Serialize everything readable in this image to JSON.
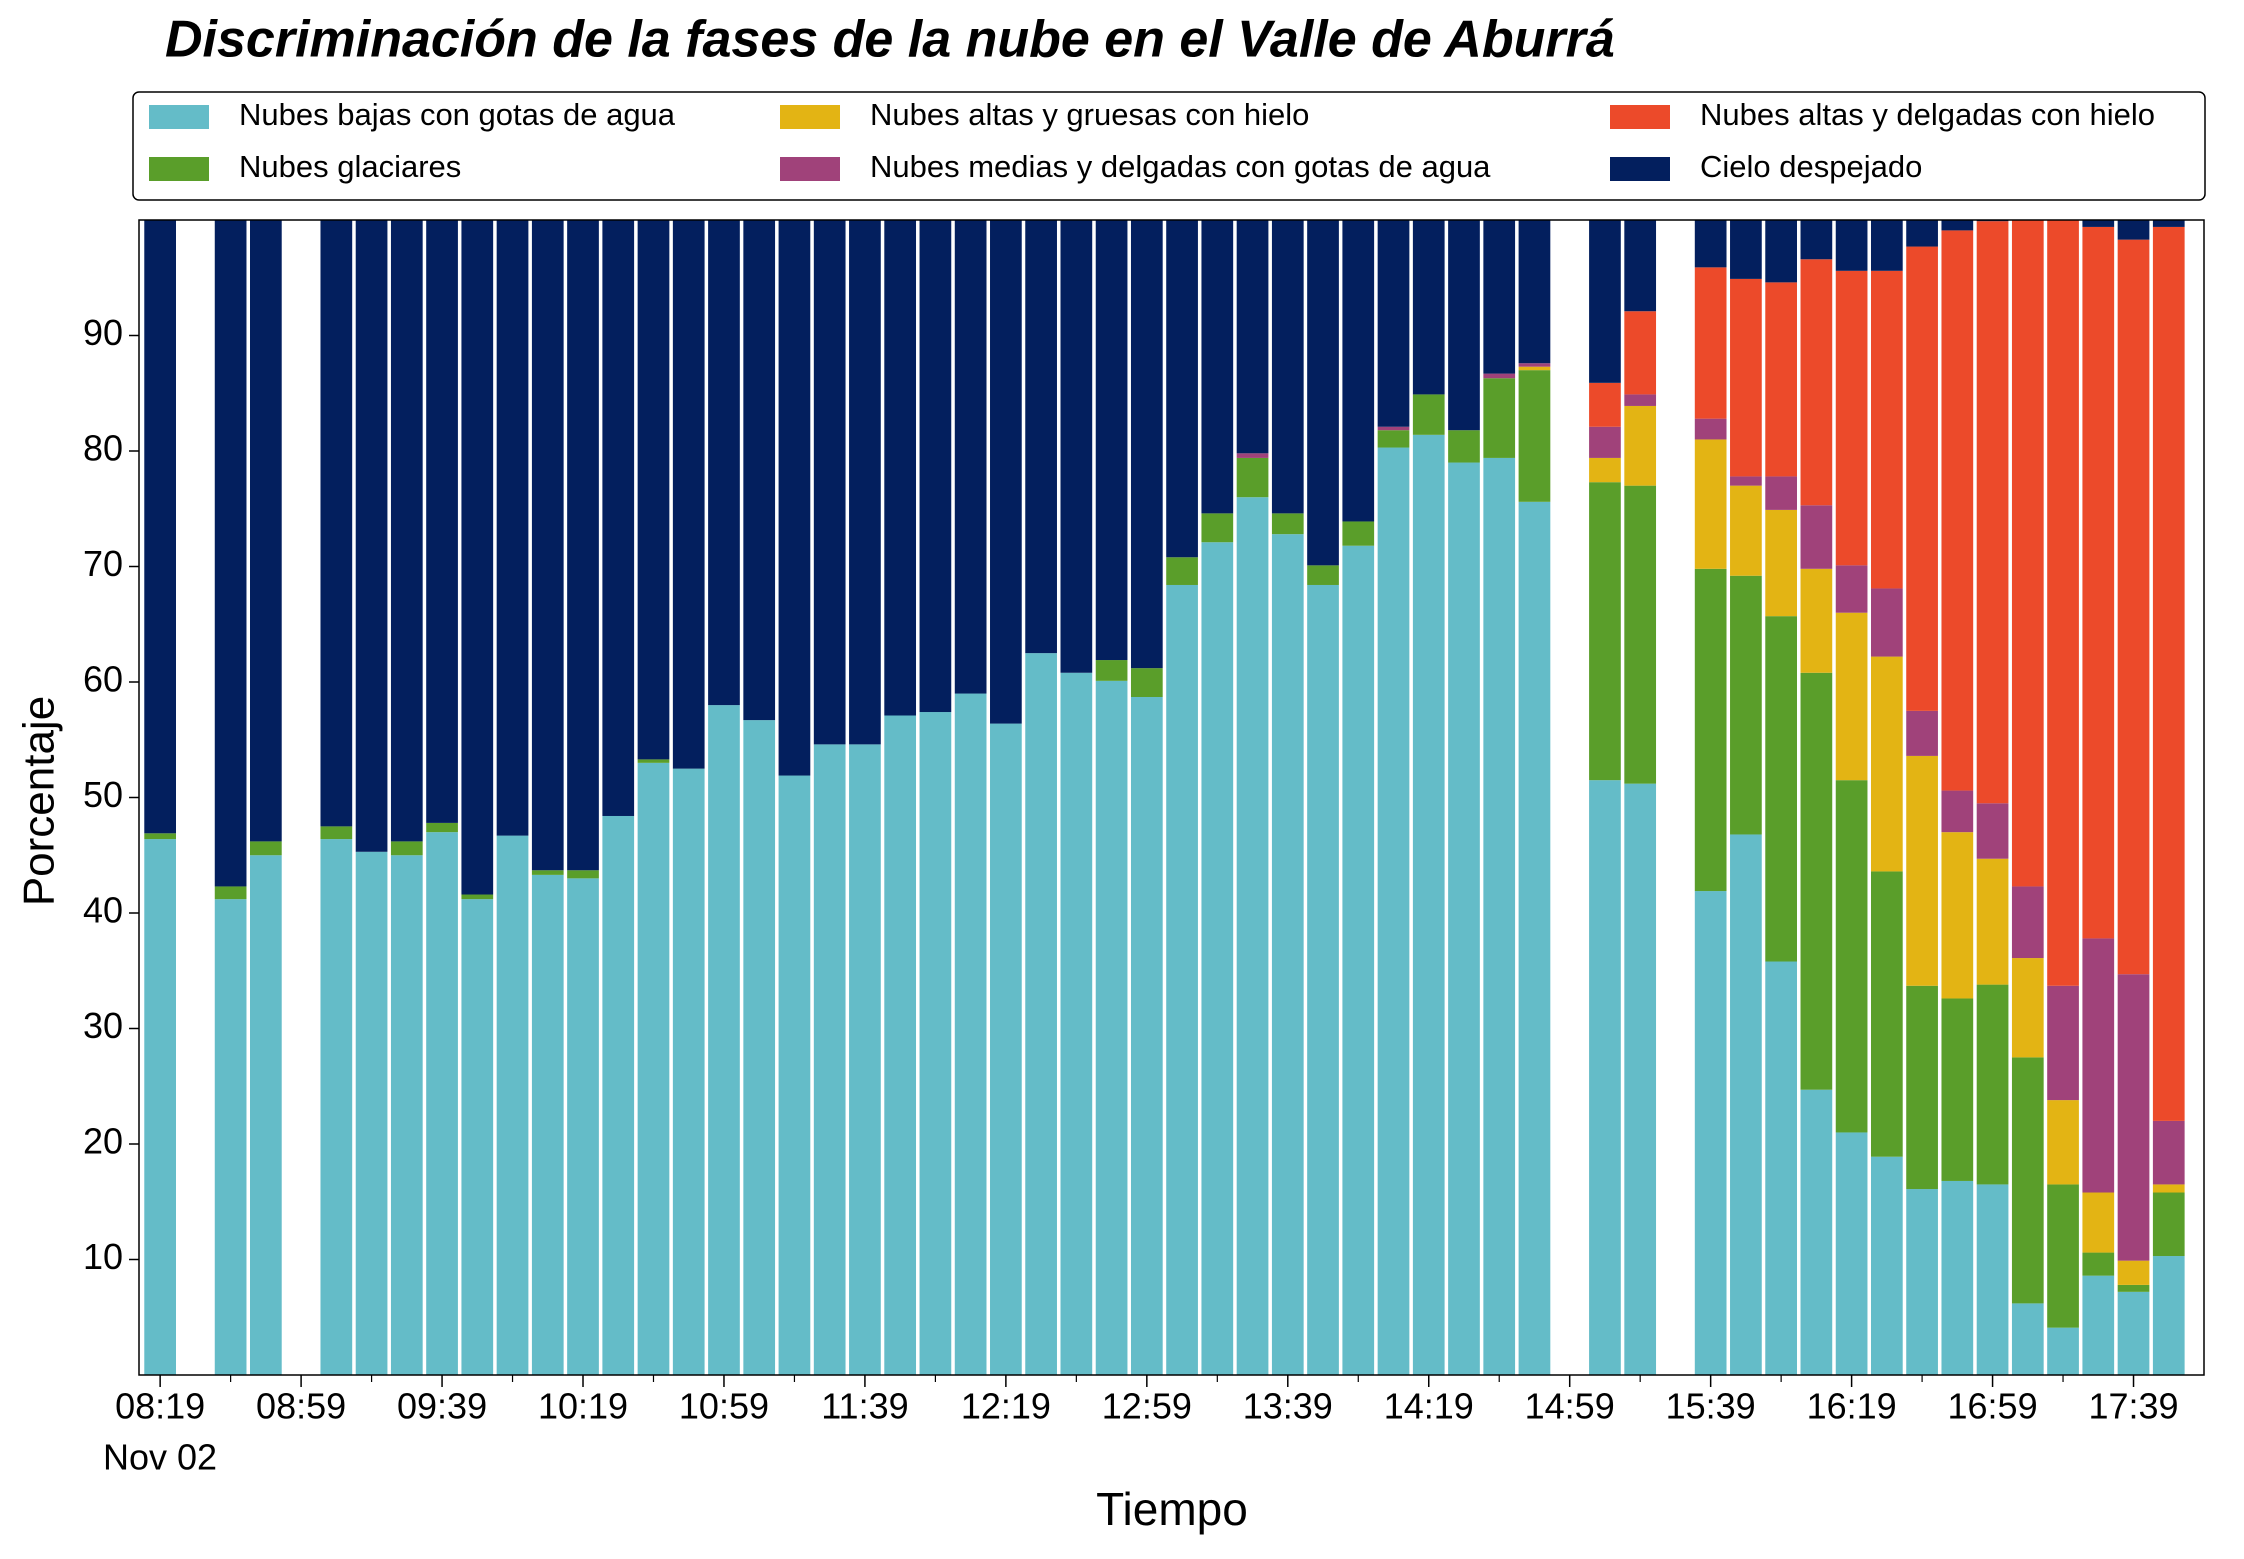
{
  "chart_data": {
    "type": "stacked_bar",
    "title": "Discriminación de la fases de la nube en el Valle de Aburrá",
    "x_label": "Tiempo",
    "y_label": "Porcentaje",
    "x_sublabel": "Nov 02",
    "categories": [
      "08:19",
      null,
      null,
      null,
      "08:59",
      null,
      null,
      null,
      "09:39",
      null,
      null,
      null,
      "10:19",
      null,
      null,
      null,
      "10:59",
      null,
      null,
      null,
      "11:39",
      null,
      null,
      null,
      "12:19",
      null,
      null,
      null,
      "12:59",
      null,
      null,
      null,
      "13:39",
      null,
      null,
      null,
      "14:19",
      null,
      null,
      null,
      "14:59",
      null,
      null,
      null,
      "15:39",
      null,
      null,
      null,
      "16:19",
      null,
      null,
      null,
      "16:59",
      null,
      null,
      null,
      "17:39",
      null
    ],
    "ylim": [
      0,
      100
    ],
    "yticks": [
      10,
      20,
      30,
      40,
      50,
      60,
      70,
      80,
      90
    ],
    "series": [
      {
        "name": "Nubes bajas con gotas de agua",
        "color": "#64bcc8",
        "values": [
          46.4,
          null,
          41.2,
          45,
          null,
          46.4,
          45.3,
          45,
          47,
          41.2,
          46.7,
          43.3,
          43,
          48.4,
          53,
          52.5,
          58,
          56.7,
          51.9,
          54.6,
          54.6,
          57.1,
          57.4,
          59,
          56.4,
          62.5,
          60.8,
          60.1,
          58.7,
          68.4,
          72.1,
          76,
          72.8,
          68.4,
          71.8,
          80.3,
          81.4,
          79,
          79.4,
          75.6,
          null,
          51.5,
          51.2,
          null,
          41.9,
          46.8,
          35.8,
          24.7,
          21,
          18.9,
          16.1,
          16.8,
          16.5,
          6.2,
          4.1,
          8.6,
          7.2,
          10.3
        ]
      },
      {
        "name": "Nubes glaciares",
        "color": "#5a9e2a",
        "values": [
          0.5,
          null,
          1.1,
          1.2,
          null,
          1.1,
          0,
          1.2,
          0.8,
          0.4,
          0,
          0.4,
          0.7,
          0,
          0.3,
          0,
          0,
          0,
          0,
          0,
          0,
          0,
          0,
          0,
          0,
          0,
          0,
          1.8,
          2.5,
          2.4,
          2.5,
          3.4,
          1.8,
          1.7,
          2.1,
          1.5,
          3.5,
          2.8,
          6.9,
          11.4,
          null,
          25.8,
          25.8,
          null,
          27.9,
          22.4,
          29.9,
          36.1,
          30.5,
          24.7,
          17.6,
          15.8,
          17.3,
          21.3,
          12.4,
          2.0,
          0.6,
          5.5
        ]
      },
      {
        "name": "Nubes altas y gruesas con hielo",
        "color": "#e3b414",
        "values": [
          0,
          null,
          0,
          0,
          null,
          0,
          0,
          0,
          0,
          0,
          0,
          0,
          0,
          0,
          0,
          0,
          0,
          0,
          0,
          0,
          0,
          0,
          0,
          0,
          0,
          0,
          0,
          0,
          0,
          0,
          0,
          0,
          0,
          0,
          0,
          0,
          0,
          0,
          0,
          0.3,
          null,
          2.1,
          6.9,
          null,
          11.2,
          7.8,
          9.2,
          9.0,
          14.5,
          18.6,
          19.9,
          14.4,
          10.9,
          8.6,
          7.3,
          5.2,
          2.1,
          0.7
        ]
      },
      {
        "name": "Nubes medias y delgadas con gotas de agua",
        "color": "#a0427a",
        "values": [
          0,
          null,
          0,
          0,
          null,
          0,
          0,
          0,
          0,
          0,
          0,
          0,
          0,
          0,
          0,
          0,
          0,
          0,
          0,
          0,
          0,
          0,
          0,
          0,
          0,
          0,
          0,
          0,
          0,
          0,
          0,
          0.4,
          0,
          0,
          0,
          0.3,
          0,
          0,
          0.4,
          0.3,
          null,
          2.7,
          1.0,
          null,
          1.8,
          0.8,
          2.9,
          5.5,
          4.1,
          5.9,
          3.9,
          3.6,
          4.8,
          6.2,
          9.9,
          22.0,
          24.8,
          5.5
        ]
      },
      {
        "name": "Nubes altas y delgadas con hielo",
        "color": "#ec4a2a",
        "values": [
          0,
          null,
          0,
          0,
          null,
          0,
          0,
          0,
          0,
          0,
          0,
          0,
          0,
          0,
          0,
          0,
          0,
          0,
          0,
          0,
          0,
          0,
          0,
          0,
          0,
          0,
          0,
          0,
          0,
          0,
          0,
          0,
          0,
          0,
          0,
          0,
          0,
          0,
          0,
          0,
          null,
          3.8,
          7.2,
          null,
          13.1,
          17.1,
          16.8,
          21.3,
          25.5,
          27.5,
          40.2,
          48.5,
          50.4,
          57.7,
          66.3,
          61.6,
          63.6,
          77.4
        ]
      },
      {
        "name": "Cielo despejado",
        "color": "#031f5e",
        "values": [
          53.1,
          null,
          57.7,
          53.8,
          null,
          52.5,
          54.7,
          53.8,
          52.2,
          58.4,
          53.3,
          56.3,
          56.3,
          51.6,
          46.7,
          47.5,
          42,
          43.3,
          48.1,
          45.4,
          45.4,
          42.9,
          42.6,
          41,
          43.6,
          37.5,
          39.2,
          38.1,
          38.8,
          29.2,
          25.4,
          20.2,
          25.4,
          29.9,
          26.1,
          17.9,
          15.1,
          18.2,
          13.3,
          12.4,
          null,
          14.1,
          7.9,
          null,
          4.1,
          5.1,
          5.4,
          3.4,
          4.4,
          4.4,
          2.3,
          0.9,
          0.1,
          0,
          0,
          0.6,
          1.7,
          0.6
        ]
      }
    ]
  }
}
